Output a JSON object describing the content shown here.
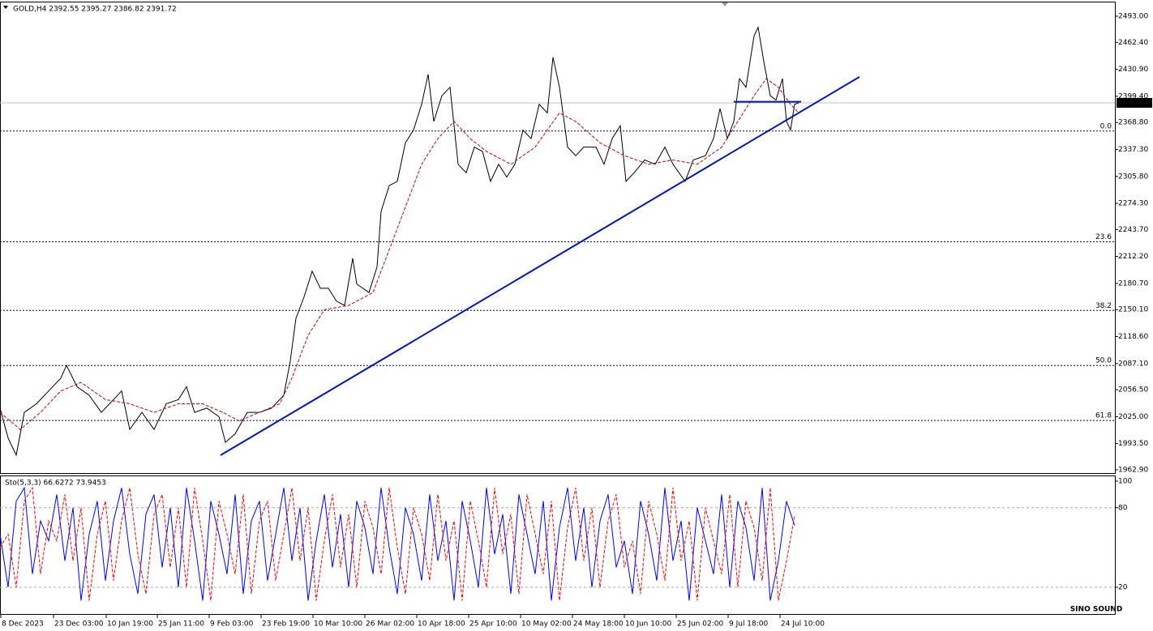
{
  "chart_data": [
    {
      "type": "line",
      "title": "GOLD,H4  2392.55 2395.27 2386.82 2391.72",
      "xlim": [
        0,
        1375
      ],
      "xticks": [
        {
          "value": 0,
          "label": "8 Dec 2023"
        },
        {
          "value": 65,
          "label": "23 Dec 03:00"
        },
        {
          "value": 130,
          "label": "10 Jan 19:00"
        },
        {
          "value": 193,
          "label": "25 Jan 11:00"
        },
        {
          "value": 257,
          "label": "9 Feb 03:00"
        },
        {
          "value": 321,
          "label": "23 Feb 19:00"
        },
        {
          "value": 385,
          "label": "10 Mar 10:00"
        },
        {
          "value": 449,
          "label": "26 Mar 02:00"
        },
        {
          "value": 513,
          "label": "10 Apr 18:00"
        },
        {
          "value": 577,
          "label": "25 Apr 10:00"
        },
        {
          "value": 641,
          "label": "10 May 02:00"
        },
        {
          "value": 705,
          "label": "24 May 18:00"
        },
        {
          "value": 769,
          "label": "10 Jun 10:00"
        },
        {
          "value": 833,
          "label": "25 Jun 02:00"
        },
        {
          "value": 897,
          "label": "9 Jul 18:00"
        },
        {
          "value": 961,
          "label": "24 Jul 10:00"
        }
      ],
      "ylim": [
        1959.1,
        2509.1
      ],
      "yticks": [
        {
          "value": 2493,
          "label": "2493.00"
        },
        {
          "value": 2462.4,
          "label": "2462.40"
        },
        {
          "value": 2430.9,
          "label": "2430.90"
        },
        {
          "value": 2399.4,
          "label": "2399.40"
        },
        {
          "value": 2368.8,
          "label": "2368.80"
        },
        {
          "value": 2337.3,
          "label": "2337.30"
        },
        {
          "value": 2305.8,
          "label": "2305.80"
        },
        {
          "value": 2274.3,
          "label": "2274.30"
        },
        {
          "value": 2243.7,
          "label": "2243.70"
        },
        {
          "value": 2212.2,
          "label": "2212.20"
        },
        {
          "value": 2180.7,
          "label": "2180.70"
        },
        {
          "value": 2150.1,
          "label": "2150.10"
        },
        {
          "value": 2118.6,
          "label": "2118.60"
        },
        {
          "value": 2087.1,
          "label": "2087.10"
        },
        {
          "value": 2056.5,
          "label": "2056.50"
        },
        {
          "value": 2025,
          "label": "2025.00"
        },
        {
          "value": 1993.5,
          "label": "1993.50"
        },
        {
          "value": 1962.9,
          "label": "1962.90"
        }
      ],
      "grid": false,
      "last_price": 2391.72,
      "series": [
        {
          "color": "#000000",
          "dashed": false,
          "x": [
            0,
            10,
            20,
            30,
            45,
            60,
            75,
            82,
            95,
            110,
            125,
            140,
            150,
            160,
            175,
            190,
            205,
            220,
            230,
            240,
            255,
            270,
            278,
            290,
            305,
            320,
            335,
            350,
            358,
            365,
            375,
            385,
            395,
            405,
            415,
            425,
            435,
            440,
            455,
            465,
            470,
            480,
            490,
            500,
            510,
            520,
            528,
            535,
            545,
            555,
            565,
            575,
            585,
            595,
            605,
            615,
            625,
            635,
            645,
            655,
            665,
            675,
            682,
            690,
            700,
            710,
            720,
            735,
            745,
            755,
            765,
            772,
            782,
            795,
            808,
            820,
            830,
            845,
            855,
            870,
            880,
            888,
            897,
            905,
            912,
            920,
            930,
            935,
            942,
            950,
            957,
            965,
            970,
            975,
            980,
            985
          ],
          "values": [
            2035,
            2000,
            1980,
            2030,
            2040,
            2055,
            2070,
            2085,
            2060,
            2050,
            2030,
            2045,
            2055,
            2010,
            2030,
            2010,
            2040,
            2045,
            2060,
            2030,
            2035,
            2025,
            1995,
            2005,
            2030,
            2030,
            2035,
            2050,
            2090,
            2140,
            2165,
            2195,
            2175,
            2175,
            2160,
            2155,
            2210,
            2180,
            2170,
            2200,
            2265,
            2295,
            2300,
            2345,
            2360,
            2390,
            2425,
            2370,
            2400,
            2410,
            2320,
            2310,
            2340,
            2335,
            2300,
            2320,
            2305,
            2320,
            2360,
            2350,
            2390,
            2380,
            2445,
            2410,
            2340,
            2330,
            2340,
            2340,
            2320,
            2350,
            2365,
            2300,
            2310,
            2325,
            2320,
            2340,
            2320,
            2300,
            2325,
            2330,
            2350,
            2385,
            2350,
            2370,
            2420,
            2410,
            2470,
            2480,
            2440,
            2400,
            2395,
            2420,
            2370,
            2360,
            2390,
            2391.72
          ]
        },
        {
          "color": "#cc0000",
          "dashed": true,
          "x": [
            0,
            25,
            50,
            75,
            100,
            130,
            160,
            190,
            220,
            250,
            275,
            295,
            320,
            345,
            360,
            380,
            400,
            430,
            460,
            480,
            500,
            520,
            540,
            560,
            580,
            600,
            630,
            660,
            690,
            710,
            740,
            770,
            800,
            830,
            860,
            890,
            910,
            930,
            945,
            960,
            975,
            985
          ],
          "values": [
            2030,
            2010,
            2030,
            2055,
            2065,
            2045,
            2040,
            2030,
            2040,
            2040,
            2030,
            2020,
            2030,
            2040,
            2070,
            2120,
            2150,
            2155,
            2170,
            2220,
            2270,
            2320,
            2350,
            2370,
            2350,
            2335,
            2320,
            2340,
            2380,
            2370,
            2345,
            2330,
            2320,
            2325,
            2320,
            2340,
            2370,
            2400,
            2420,
            2410,
            2390,
            2380
          ]
        }
      ],
      "levels": [
        {
          "label": "0.0",
          "value": 2358.8
        },
        {
          "label": "23.6",
          "value": 2229.4
        },
        {
          "label": "38.2",
          "value": 2149.1
        },
        {
          "label": "50.0",
          "value": 2084.8
        },
        {
          "label": "61.8",
          "value": 2020.5
        }
      ],
      "level_color": "#000080",
      "lines": [
        {
          "color": "#0019b4",
          "x": [
            272,
            1060
          ],
          "y": [
            1979.9,
            2422.1
          ]
        },
        {
          "color": "#0019b4",
          "x": [
            905,
            988
          ],
          "y": [
            2393,
            2393
          ]
        }
      ],
      "watermark": "SINO SOUND"
    },
    {
      "type": "line",
      "title": "Sto(5,3,3) 66.6272 73.9453",
      "xlim": [
        0,
        1375
      ],
      "ylim": [
        0,
        100
      ],
      "yticks": [
        100,
        80,
        20
      ],
      "grid": true,
      "series": [
        {
          "color": "#0000ff",
          "dashed": false,
          "x": [
            0,
            10,
            20,
            30,
            40,
            50,
            60,
            70,
            80,
            90,
            100,
            110,
            120,
            130,
            140,
            150,
            160,
            170,
            180,
            190,
            200,
            210,
            220,
            230,
            240,
            250,
            260,
            270,
            280,
            290,
            300,
            310,
            320,
            330,
            340,
            350,
            360,
            370,
            380,
            390,
            400,
            410,
            420,
            430,
            440,
            450,
            460,
            470,
            480,
            490,
            500,
            510,
            520,
            530,
            540,
            550,
            560,
            570,
            580,
            590,
            600,
            610,
            620,
            630,
            640,
            650,
            660,
            670,
            680,
            690,
            700,
            710,
            720,
            730,
            740,
            750,
            760,
            770,
            780,
            790,
            800,
            810,
            820,
            830,
            840,
            850,
            860,
            870,
            880,
            890,
            900,
            910,
            920,
            930,
            940,
            950,
            960,
            970,
            980
          ],
          "values": [
            60,
            20,
            85,
            95,
            30,
            70,
            55,
            90,
            40,
            80,
            10,
            60,
            85,
            25,
            70,
            95,
            45,
            15,
            75,
            90,
            35,
            80,
            20,
            95,
            55,
            10,
            85,
            60,
            30,
            90,
            15,
            70,
            85,
            25,
            60,
            95,
            40,
            80,
            10,
            55,
            90,
            35,
            75,
            20,
            85,
            65,
            30,
            95,
            50,
            15,
            80,
            60,
            25,
            90,
            40,
            70,
            10,
            85,
            55,
            20,
            95,
            45,
            75,
            15,
            90,
            60,
            30,
            85,
            10,
            65,
            95,
            40,
            80,
            20,
            70,
            90,
            35,
            55,
            15,
            85,
            60,
            25,
            95,
            40,
            70,
            10,
            80,
            55,
            30,
            90,
            20,
            85,
            65,
            25,
            95,
            10,
            40,
            85,
            66.6
          ]
        },
        {
          "color": "#ff0000",
          "dashed": true,
          "x": [
            0,
            10,
            20,
            30,
            40,
            50,
            60,
            70,
            80,
            90,
            100,
            110,
            120,
            130,
            140,
            150,
            160,
            170,
            180,
            190,
            200,
            210,
            220,
            230,
            240,
            250,
            260,
            270,
            280,
            290,
            300,
            310,
            320,
            330,
            340,
            350,
            360,
            370,
            380,
            390,
            400,
            410,
            420,
            430,
            440,
            450,
            460,
            470,
            480,
            490,
            500,
            510,
            520,
            530,
            540,
            550,
            560,
            570,
            580,
            590,
            600,
            610,
            620,
            630,
            640,
            650,
            660,
            670,
            680,
            690,
            700,
            710,
            720,
            730,
            740,
            750,
            760,
            770,
            780,
            790,
            800,
            810,
            820,
            830,
            840,
            850,
            860,
            870,
            880,
            890,
            900,
            910,
            920,
            930,
            940,
            950,
            960,
            970,
            980
          ],
          "values": [
            50,
            60,
            20,
            85,
            95,
            30,
            70,
            55,
            90,
            40,
            80,
            10,
            60,
            85,
            25,
            70,
            95,
            45,
            15,
            75,
            90,
            35,
            80,
            20,
            95,
            55,
            10,
            85,
            60,
            30,
            90,
            15,
            70,
            85,
            25,
            60,
            95,
            40,
            80,
            10,
            55,
            90,
            35,
            75,
            20,
            85,
            65,
            30,
            95,
            50,
            15,
            80,
            60,
            25,
            90,
            40,
            70,
            10,
            85,
            55,
            20,
            95,
            45,
            75,
            15,
            90,
            60,
            30,
            85,
            10,
            65,
            95,
            40,
            80,
            20,
            70,
            90,
            35,
            55,
            15,
            85,
            60,
            25,
            95,
            40,
            70,
            10,
            80,
            55,
            30,
            90,
            20,
            85,
            65,
            25,
            95,
            10,
            40,
            73.9
          ]
        }
      ]
    }
  ]
}
